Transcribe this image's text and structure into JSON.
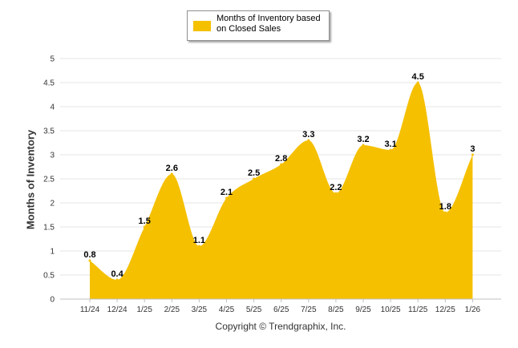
{
  "chart_data": {
    "type": "area",
    "title": "",
    "xlabel": "",
    "ylabel": "Months of Inventory",
    "ylim": [
      0,
      5
    ],
    "yticks": [
      "0",
      "0.5",
      "1",
      "1.5",
      "2",
      "2.5",
      "3",
      "3.5",
      "4",
      "4.5",
      "5"
    ],
    "categories": [
      "11/24",
      "12/24",
      "1/25",
      "2/25",
      "3/25",
      "4/25",
      "5/25",
      "6/25",
      "7/25",
      "8/25",
      "9/25",
      "10/25",
      "11/25",
      "12/25",
      "1/26"
    ],
    "series": [
      {
        "name": "Months of Inventory based on Closed Sales",
        "color": "#F5C000",
        "values": [
          0.8,
          0.4,
          1.5,
          2.6,
          1.1,
          2.1,
          2.5,
          2.8,
          3.3,
          2.2,
          3.2,
          3.1,
          4.5,
          1.8,
          3
        ],
        "labels": [
          "0.8",
          "0.4",
          "1.5",
          "2.6",
          "1.1",
          "2.1",
          "2.5",
          "2.8",
          "3.3",
          "2.2",
          "3.2",
          "3.1",
          "4.5",
          "1.8",
          "3"
        ]
      }
    ],
    "grid": true,
    "legend": "top-center"
  },
  "legend": {
    "label": "Months of Inventory based on Closed Sales",
    "color": "#F5C000"
  },
  "footer": {
    "copyright": "Copyright © Trendgraphix, Inc."
  }
}
